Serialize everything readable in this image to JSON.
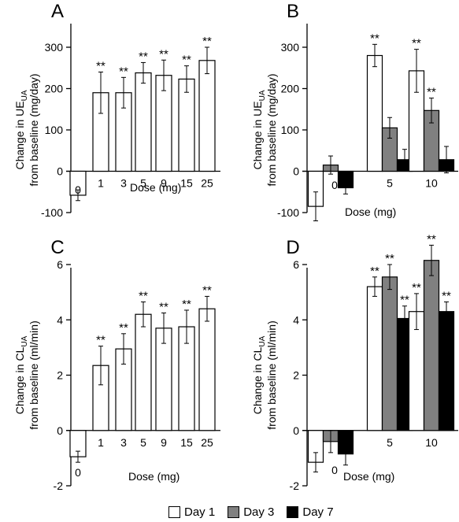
{
  "legend": [
    {
      "label": "Day 1",
      "color": "#ffffff"
    },
    {
      "label": "Day 3",
      "color": "#808080"
    },
    {
      "label": "Day 7",
      "color": "#000000"
    }
  ],
  "chart_data": [
    {
      "type": "bar",
      "panel_label": "A",
      "ylabel_line1": "Change in UE",
      "ylabel_sub": "UA",
      "ylabel_line1_suffix": "",
      "ylabel_line2": "from baseline (mg/day)",
      "xlabel": "Dose (mg)",
      "ylim": [
        -100,
        300
      ],
      "yticks": [
        -100,
        0,
        100,
        200,
        300
      ],
      "categories": [
        "0",
        "1",
        "3",
        "5",
        "9",
        "15",
        "25"
      ],
      "series": [
        {
          "color": "#ffffff",
          "values": [
            -58,
            190,
            190,
            238,
            232,
            223,
            268
          ],
          "errors": [
            13,
            50,
            37,
            25,
            37,
            32,
            32
          ],
          "signif": [
            "",
            "**",
            "**",
            "**",
            "**",
            "**",
            "**"
          ]
        }
      ]
    },
    {
      "type": "bar",
      "panel_label": "B",
      "ylabel_line1": "Change in UE",
      "ylabel_sub": "UA",
      "ylabel_line1_suffix": "",
      "ylabel_line2": "from baseline (mg/day)",
      "xlabel": "Dose (mg)",
      "ylim": [
        -100,
        300
      ],
      "yticks": [
        -100,
        0,
        100,
        200,
        300
      ],
      "categories": [
        "0",
        "5",
        "10"
      ],
      "series": [
        {
          "name": "Day 1",
          "color": "#ffffff",
          "values": [
            -85,
            280,
            243
          ],
          "errors": [
            35,
            27,
            52
          ],
          "signif": [
            "",
            "**",
            "**"
          ]
        },
        {
          "name": "Day 3",
          "color": "#808080",
          "values": [
            15,
            105,
            147
          ],
          "errors": [
            22,
            25,
            30
          ],
          "signif": [
            "",
            "",
            "**"
          ]
        },
        {
          "name": "Day 7",
          "color": "#000000",
          "values": [
            -40,
            28,
            28
          ],
          "errors": [
            15,
            25,
            32
          ],
          "signif": [
            "",
            "",
            ""
          ]
        }
      ]
    },
    {
      "type": "bar",
      "panel_label": "C",
      "ylabel_line1": "Change in CL",
      "ylabel_sub": "UA",
      "ylabel_line1_suffix": "",
      "ylabel_line2": "from baseline (ml/min)",
      "xlabel": "Dose (mg)",
      "ylim": [
        -2,
        7
      ],
      "yticks": [
        -2,
        0,
        2,
        4,
        6
      ],
      "categories": [
        "0",
        "1",
        "3",
        "5",
        "9",
        "15",
        "25"
      ],
      "series": [
        {
          "color": "#ffffff",
          "values": [
            -0.95,
            2.35,
            2.95,
            4.2,
            3.7,
            3.75,
            4.4
          ],
          "errors": [
            0.2,
            0.7,
            0.55,
            0.45,
            0.55,
            0.6,
            0.45
          ],
          "signif": [
            "",
            "**",
            "**",
            "**",
            "**",
            "**",
            "**"
          ]
        }
      ]
    },
    {
      "type": "bar",
      "panel_label": "D",
      "ylabel_line1": "Change in CL",
      "ylabel_sub": "UA",
      "ylabel_line1_suffix": "",
      "ylabel_line2": "from baseline (ml/min)",
      "xlabel": "Dose (mg)",
      "ylim": [
        -2,
        7
      ],
      "yticks": [
        -2,
        0,
        2,
        4,
        6
      ],
      "categories": [
        "0",
        "5",
        "10"
      ],
      "series": [
        {
          "name": "Day 1",
          "color": "#ffffff",
          "values": [
            -1.15,
            5.2,
            4.3
          ],
          "errors": [
            0.35,
            0.35,
            0.65
          ],
          "signif": [
            "",
            "**",
            "**"
          ]
        },
        {
          "name": "Day 3",
          "color": "#808080",
          "values": [
            -0.4,
            5.55,
            6.15
          ],
          "errors": [
            0.4,
            0.45,
            0.55
          ],
          "signif": [
            "",
            "**",
            "**"
          ]
        },
        {
          "name": "Day 7",
          "color": "#000000",
          "values": [
            -0.85,
            4.05,
            4.3
          ],
          "errors": [
            0.4,
            0.45,
            0.35
          ],
          "signif": [
            "",
            "**",
            "**"
          ]
        }
      ]
    }
  ]
}
